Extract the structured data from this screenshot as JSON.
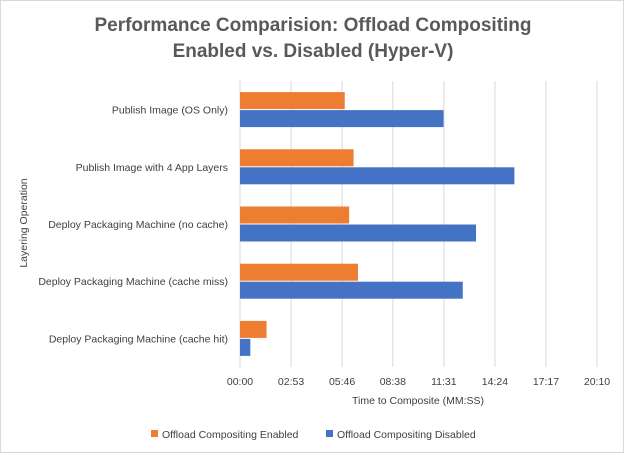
{
  "chart_data": {
    "type": "bar",
    "orientation": "horizontal",
    "title_lines": [
      "Performance Comparision:  Offload Compositing",
      "Enabled vs. Disabled  (Hyper-V)"
    ],
    "xlabel": "Time to Composite (MM:SS)",
    "ylabel": "Layering Operation",
    "categories": [
      "Publish Image (OS Only)",
      "Publish Image with 4 App Layers",
      "Deploy Packaging Machine (no cache)",
      "Deploy Packaging Machine (cache miss)",
      "Deploy Packaging Machine (cache hit)"
    ],
    "x_unit": "seconds",
    "xlim": [
      0,
      1210
    ],
    "x_ticks": [
      0,
      173,
      346,
      518,
      691,
      864,
      1037,
      1210
    ],
    "x_tick_labels": [
      "00:00",
      "02:53",
      "05:46",
      "08:38",
      "11:31",
      "14:24",
      "17:17",
      "20:10"
    ],
    "series": [
      {
        "name": "Offload Compositing Enabled",
        "color": "#ed7d31",
        "values": [
          355,
          385,
          370,
          400,
          90
        ]
      },
      {
        "name": "Offload Compositing Disabled",
        "color": "#4472c4",
        "values": [
          690,
          930,
          800,
          755,
          35
        ]
      }
    ],
    "grid": "vertical",
    "legend_position": "bottom"
  }
}
